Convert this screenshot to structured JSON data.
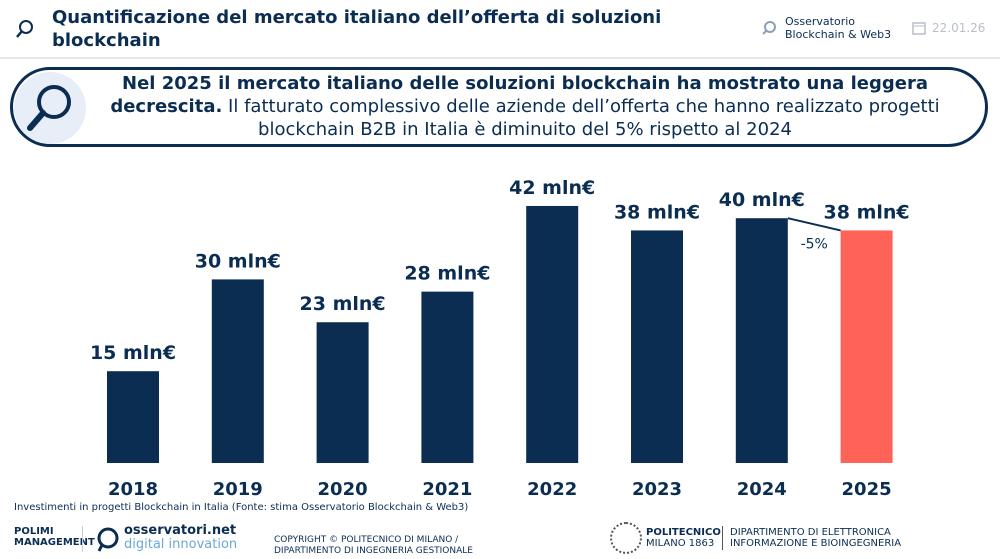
{
  "header": {
    "title": "Quantificazione del mercato italiano dell’offerta di soluzioni blockchain",
    "observatory_line1": "Osservatorio",
    "observatory_line2": "Blockchain & Web3",
    "date": "22.01.26"
  },
  "highlight": {
    "bold": "Nel 2025 il mercato italiano delle soluzioni blockchain ha mostrato una leggera decrescita.",
    "text": " Il fatturato complessivo delle aziende dell’offerta che hanno realizzato progetti blockchain B2B in Italia è diminuito del 5% rispetto al 2024"
  },
  "chart_data": {
    "type": "bar",
    "categories": [
      "2018",
      "2019",
      "2020",
      "2021",
      "2022",
      "2023",
      "2024",
      "2025"
    ],
    "values": [
      15,
      30,
      23,
      28,
      42,
      38,
      40,
      38
    ],
    "data_labels": [
      "15 mln€",
      "30 mln€",
      "23 mln€",
      "28 mln€",
      "42 mln€",
      "38 mln€",
      "40 mln€",
      "38 mln€"
    ],
    "unit": "mln€",
    "colors": [
      "#0b2d52",
      "#0b2d52",
      "#0b2d52",
      "#0b2d52",
      "#0b2d52",
      "#0b2d52",
      "#0b2d52",
      "#ff6257"
    ],
    "annotation": "-5%",
    "grid": false,
    "title": "",
    "xlabel": "",
    "ylabel": ""
  },
  "caption": "Investimenti in progetti Blockchain in Italia (Fonte: stima Osservatorio Blockchain & Web3)",
  "footer": {
    "polimi_line1": "POLIMI",
    "polimi_line2": "MANAGEMENT",
    "osservatori_line1": "osservatori.net",
    "osservatori_line2": "digital innovation",
    "copyright_line1": "COPYRIGHT © POLITECNICO DI MILANO /",
    "copyright_line2": "DIPARTIMENTO DI INGEGNERIA GESTIONALE",
    "poli_line1": "POLITECNICO",
    "poli_line2": "MILANO 1863",
    "dept_line1": "DIPARTIMENTO DI ELETTRONICA",
    "dept_line2": "INFORMAZIONE E BIOINGEGNERIA"
  }
}
